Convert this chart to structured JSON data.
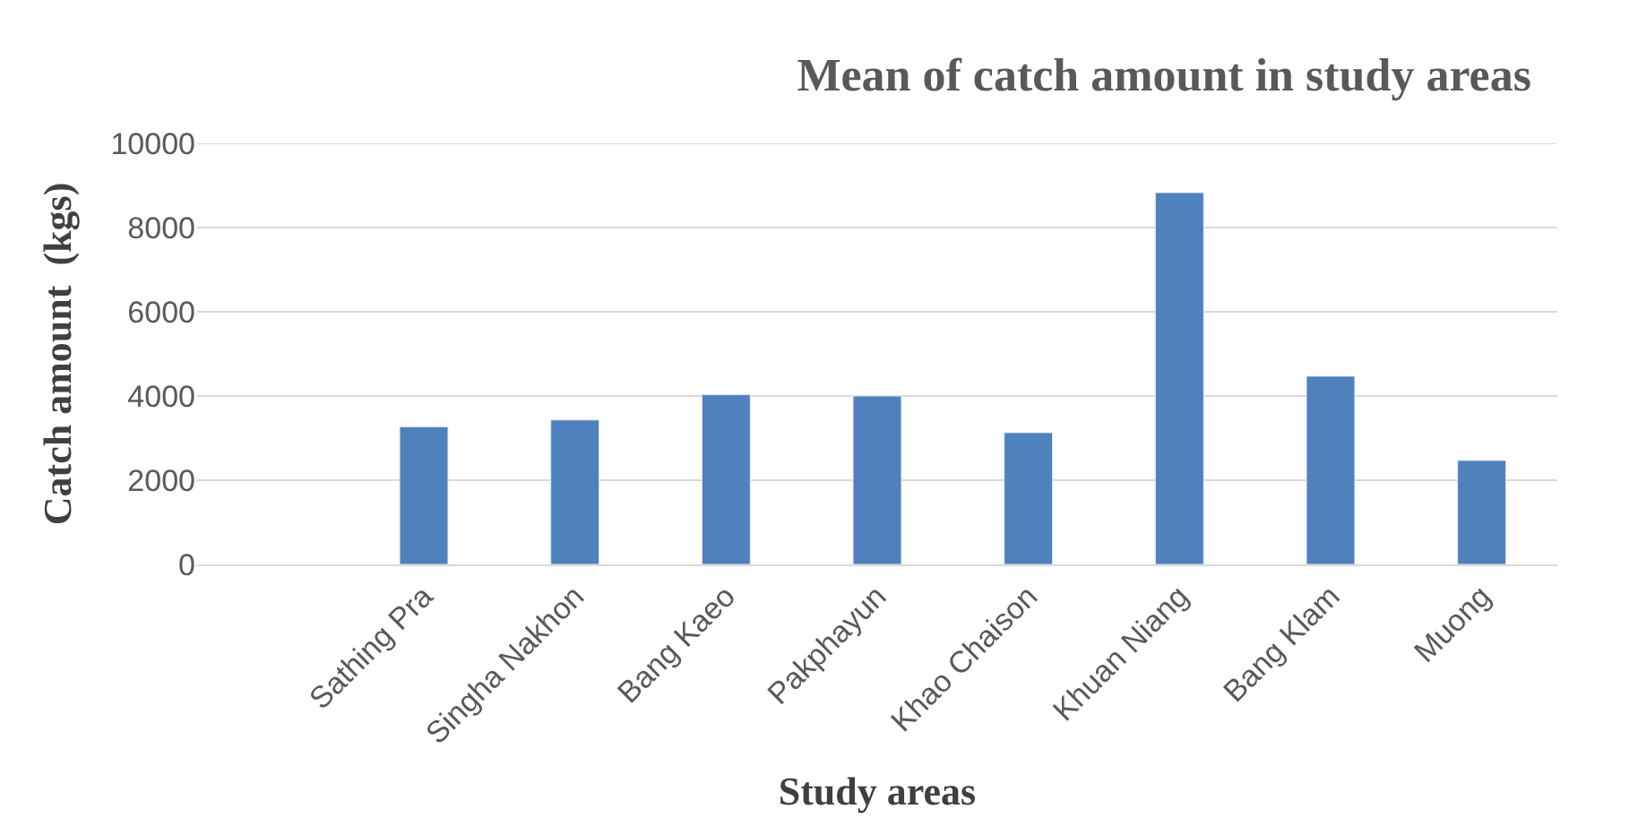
{
  "chart_data": {
    "type": "bar",
    "title": "Mean of catch amount in study areas",
    "xlabel": "Study areas",
    "ylabel": "Catch amount  (kgs)",
    "categories": [
      null,
      "Sathing Pra",
      "Singha Nakhon",
      "Bang Kaeo",
      "Pakphayun",
      "Khao Chaison",
      "Khuan Niang",
      "Bang Klam",
      "Muong"
    ],
    "values": [
      null,
      3270,
      3430,
      4030,
      4000,
      3130,
      8830,
      4470,
      2470
    ],
    "color": "#4f81bd",
    "ylim": [
      0,
      10000
    ],
    "yticks": [
      0,
      2000,
      4000,
      6000,
      8000,
      10000
    ],
    "grid": "y"
  }
}
